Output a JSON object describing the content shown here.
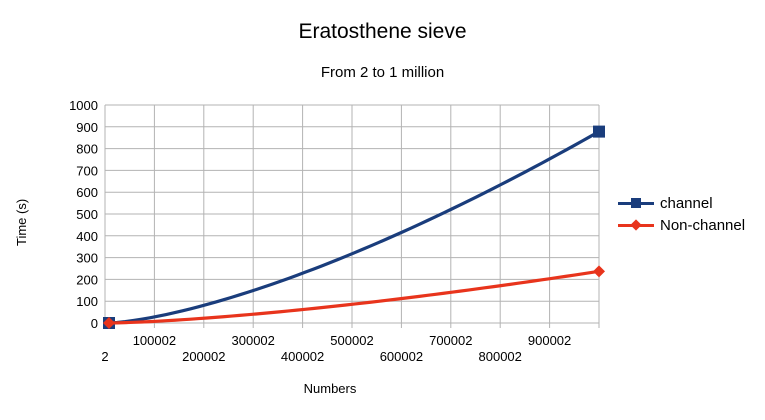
{
  "chart_data": {
    "type": "line",
    "title": "Eratosthene sieve",
    "subtitle": "From 2 to 1 million",
    "xlabel": "Numbers",
    "ylabel": "Time (s)",
    "x_ticks": [
      "2",
      "100002",
      "200002",
      "300002",
      "400002",
      "500002",
      "600002",
      "700002",
      "800002",
      "900002"
    ],
    "x": [
      2,
      1000000
    ],
    "ylim": [
      0,
      1000
    ],
    "y_ticks": [
      0,
      100,
      200,
      300,
      400,
      500,
      600,
      700,
      800,
      900,
      1000
    ],
    "grid": true,
    "legend_position": "right",
    "series": [
      {
        "name": "channel",
        "color": "#1a3d7c",
        "marker": "square",
        "values": [
          0,
          878
        ],
        "curve_exponent": 1.45
      },
      {
        "name": "Non-channel",
        "color": "#e8341c",
        "marker": "diamond",
        "values": [
          0,
          237
        ],
        "curve_exponent": 1.45
      }
    ]
  }
}
